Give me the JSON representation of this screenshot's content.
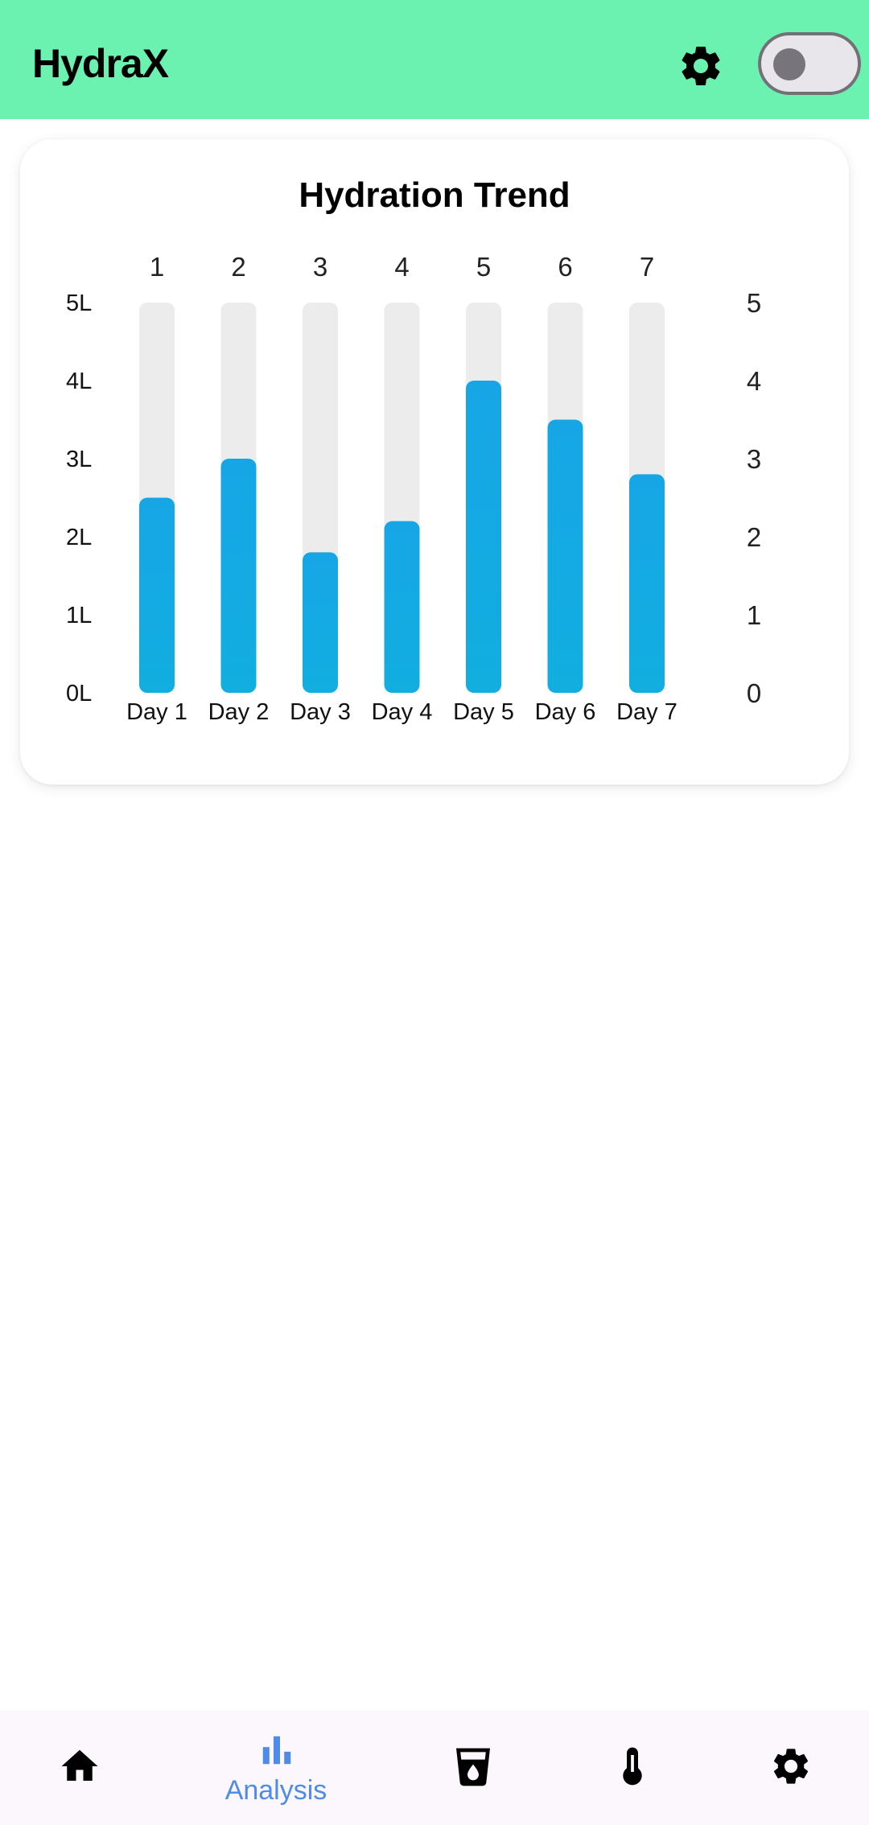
{
  "app": {
    "title": "HydraX"
  },
  "header": {
    "settings_icon": "gear-icon",
    "theme_toggle_on": false
  },
  "colors": {
    "app_bar": "#6cf2b0",
    "bar_fill": "#16a6e6",
    "bar_track": "#ececec",
    "nav_active": "#4f8be8",
    "nav_background": "#fcf6fd"
  },
  "chart_data": {
    "type": "bar",
    "title": "Hydration Trend",
    "categories": [
      "Day 1",
      "Day 2",
      "Day 3",
      "Day 4",
      "Day 5",
      "Day 6",
      "Day 7"
    ],
    "top_labels": [
      "1",
      "2",
      "3",
      "4",
      "5",
      "6",
      "7"
    ],
    "values": [
      2.5,
      3.0,
      1.8,
      2.2,
      4.0,
      3.5,
      2.8
    ],
    "ylim": [
      0,
      5
    ],
    "left_ticks": [
      "0L",
      "1L",
      "2L",
      "3L",
      "4L",
      "5L"
    ],
    "right_ticks": [
      "0",
      "1",
      "2",
      "3",
      "4",
      "5"
    ],
    "grid": false
  },
  "bottom_nav": {
    "items": [
      {
        "icon": "home-icon",
        "label": "",
        "active": false
      },
      {
        "icon": "bar-chart-icon",
        "label": "Analysis",
        "active": true
      },
      {
        "icon": "water-glass-icon",
        "label": "",
        "active": false
      },
      {
        "icon": "thermometer-icon",
        "label": "",
        "active": false
      },
      {
        "icon": "gear-icon",
        "label": "",
        "active": false
      }
    ]
  }
}
